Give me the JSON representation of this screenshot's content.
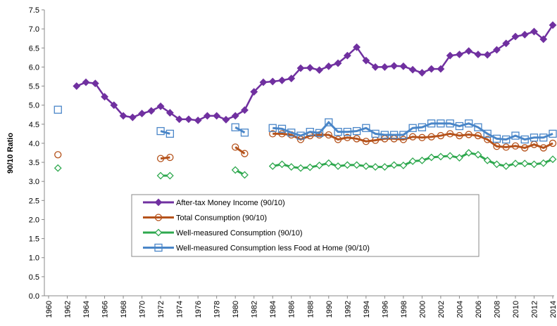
{
  "chart_data": {
    "type": "line",
    "y_label": "90/10 Ratio",
    "x": [
      1960,
      1961,
      1962,
      1963,
      1964,
      1965,
      1966,
      1967,
      1968,
      1969,
      1970,
      1971,
      1972,
      1973,
      1974,
      1975,
      1976,
      1977,
      1978,
      1979,
      1980,
      1981,
      1982,
      1983,
      1984,
      1985,
      1986,
      1987,
      1988,
      1989,
      1990,
      1991,
      1992,
      1993,
      1994,
      1995,
      1996,
      1997,
      1998,
      1999,
      2000,
      2001,
      2002,
      2003,
      2004,
      2005,
      2006,
      2007,
      2008,
      2009,
      2010,
      2011,
      2012,
      2013,
      2014
    ],
    "xlim": [
      1960,
      2014
    ],
    "xticks": [
      1960,
      1962,
      1964,
      1966,
      1968,
      1970,
      1972,
      1974,
      1976,
      1978,
      1980,
      1982,
      1984,
      1986,
      1988,
      1990,
      1992,
      1994,
      1996,
      1998,
      2000,
      2002,
      2004,
      2006,
      2008,
      2010,
      2012,
      2014
    ],
    "ylim": [
      0,
      7.5
    ],
    "yticks": [
      {
        "value": 0,
        "label": "0.0"
      },
      0.5,
      {
        "value": 1,
        "label": "1.0"
      },
      1.5,
      {
        "value": 2,
        "label": "2.0"
      },
      2.5,
      {
        "value": 3,
        "label": "3.0"
      },
      3.5,
      {
        "value": 4,
        "label": "4.0"
      },
      4.5,
      {
        "value": 5,
        "label": "5.0"
      },
      5.5,
      {
        "value": 6,
        "label": "6.0"
      },
      6.5,
      {
        "value": 7,
        "label": "7.0"
      },
      7.5
    ],
    "series": [
      {
        "name": "After-tax Money Income (90/10)",
        "color": "#7030a0",
        "marker": "diamond-filled",
        "values": [
          null,
          null,
          null,
          5.5,
          5.6,
          5.57,
          5.22,
          5.0,
          4.72,
          4.68,
          4.78,
          4.85,
          4.97,
          4.8,
          4.63,
          4.63,
          4.6,
          4.72,
          4.72,
          4.62,
          4.72,
          4.87,
          5.35,
          5.6,
          5.62,
          5.65,
          5.7,
          5.97,
          5.98,
          5.92,
          6.02,
          6.1,
          6.3,
          6.52,
          6.17,
          6.0,
          6.0,
          6.03,
          6.02,
          5.93,
          5.85,
          5.95,
          5.95,
          6.3,
          6.33,
          6.42,
          6.33,
          6.32,
          6.45,
          6.62,
          6.8,
          6.85,
          6.93,
          6.73,
          7.1
        ]
      },
      {
        "name": "Total Consumption (90/10)",
        "color": "#b5521b",
        "marker": "circle",
        "values": [
          null,
          3.7,
          null,
          null,
          null,
          null,
          null,
          null,
          null,
          null,
          null,
          null,
          3.6,
          3.63,
          null,
          null,
          null,
          null,
          null,
          null,
          3.9,
          3.73,
          null,
          null,
          4.25,
          4.25,
          4.22,
          4.1,
          4.2,
          4.22,
          4.22,
          4.1,
          4.15,
          4.12,
          4.05,
          4.08,
          4.12,
          4.12,
          4.1,
          4.17,
          4.15,
          4.17,
          4.2,
          4.25,
          4.2,
          4.23,
          4.2,
          4.1,
          3.92,
          3.9,
          3.93,
          3.88,
          3.97,
          3.88,
          4.0
        ]
      },
      {
        "name": "Well-measured Consumption (90/10)",
        "color": "#2ea84e",
        "marker": "diamond",
        "values": [
          null,
          3.35,
          null,
          null,
          null,
          null,
          null,
          null,
          null,
          null,
          null,
          null,
          3.15,
          3.15,
          null,
          null,
          null,
          null,
          null,
          null,
          3.3,
          3.17,
          null,
          null,
          3.4,
          3.45,
          3.38,
          3.35,
          3.37,
          3.42,
          3.48,
          3.4,
          3.43,
          3.43,
          3.4,
          3.38,
          3.38,
          3.43,
          3.42,
          3.53,
          3.55,
          3.63,
          3.65,
          3.67,
          3.62,
          3.75,
          3.7,
          3.55,
          3.45,
          3.4,
          3.47,
          3.47,
          3.45,
          3.48,
          3.58
        ]
      },
      {
        "name": "Well-measured Consumption less Food at Home (90/10)",
        "color": "#4a86c8",
        "marker": "square",
        "values": [
          null,
          4.88,
          null,
          null,
          null,
          null,
          null,
          null,
          null,
          null,
          null,
          null,
          4.32,
          4.25,
          null,
          null,
          null,
          null,
          null,
          null,
          4.42,
          4.28,
          null,
          null,
          4.4,
          4.38,
          4.28,
          4.2,
          4.3,
          4.27,
          4.55,
          4.3,
          4.3,
          4.32,
          4.4,
          4.25,
          4.22,
          4.22,
          4.22,
          4.4,
          4.42,
          4.52,
          4.52,
          4.52,
          4.45,
          4.52,
          4.42,
          4.25,
          4.12,
          4.1,
          4.2,
          4.1,
          4.15,
          4.15,
          4.25
        ]
      }
    ]
  }
}
